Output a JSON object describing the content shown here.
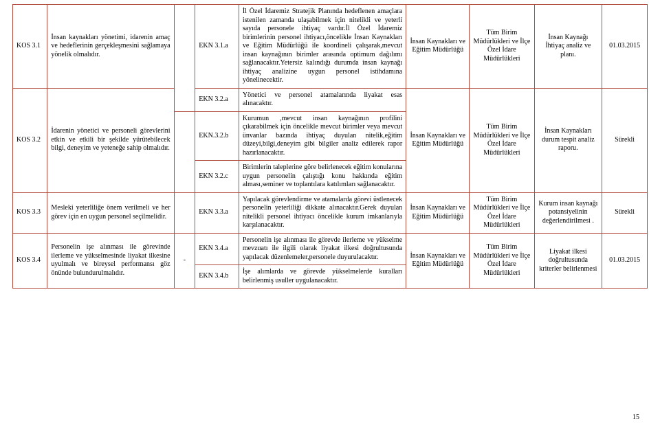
{
  "borderColor": "#b04a3a",
  "pageNumber": "15",
  "rows": [
    {
      "c1": "KOS 3.1",
      "c2": "İnsan kaynakları yönetimi, idarenin amaç ve hedeflerinin gerçekleşmesini sağlamaya yönelik olmalıdır.",
      "c3": "",
      "c4": "EKN 3.1.a",
      "c5": "İl Özel İdaremiz Stratejik Planında hedeflenen amaçlara istenilen zamanda ulaşabilmek için nitelikli ve yeterli sayıda personele ihtiyaç vardır.İl Özel İdaremiz birimlerinin personel ihtiyacı,öncelikle İnsan Kaynakları ve Eğitim Müdürlüğü ile koordineli çalışarak,mevcut insan kaynağının birimler arasında optimum dağılımı sağlanacaktır.Yetersiz kalındığı durumda insan kaynağı ihtiyaç analizine uygun personel istihdamına yönelinecektir.",
      "c6": "İnsan Kaynakları ve Eğitim Müdürlüğü",
      "c7": "Tüm Birim Müdürlükleri ve İlçe Özel İdare Müdürlükleri",
      "c8": "İnsan Kaynağı İhtiyaç analiz ve planı.",
      "c9": "01.03.2015"
    },
    {
      "c4": "EKN 3.2.a",
      "c5": "Yönetici ve personel atamalarında liyakat esas alınacaktır."
    },
    {
      "c1": "KOS 3.2",
      "c2": "İdarenin yönetici ve personeli görevlerini etkin ve etkili bir şekilde yürütebilecek bilgi, deneyim ve yeteneğe sahip olmalıdır.",
      "c3": "",
      "c4a": "EKN.3.2.b",
      "c5a": "Kurumun ,mevcut insan kaynağının profilini çıkarabilmek için öncelikle mevcut birimler veya mevcut ünvanlar bazında ihtiyaç duyulan nitelik,eğitim düzeyi,bilgi,deneyim gibi bilgiler analiz edilerek rapor hazırlanacaktır.",
      "c4b": "EKN 3.2.c",
      "c5b": "Birimlerin taleplerine göre belirlenecek eğitim konularına uygun personelin çalıştığı konu hakkında eğitim alması,seminer ve toplantılara katılımları sağlanacaktır.",
      "c6": "İnsan Kaynakları ve Eğitim Müdürlüğü",
      "c7": "Tüm Birim Müdürlükleri ve İlçe Özel İdare Müdürlükleri",
      "c8": "İnsan Kaynakları durum tespit analiz raporu.",
      "c9": "Sürekli"
    },
    {
      "c1": "KOS 3.3",
      "c2": "Mesleki yeterliliğe önem verilmeli ve her görev için en uygun personel seçilmelidir.",
      "c3": "",
      "c4": "EKN 3.3.a",
      "c5": "Yapılacak görevlendirme ve atamalarda görevi üstlenecek personelin yeterliliği dikkate alınacaktır.Gerek duyulan nitelikli personel ihtiyacı öncelikle kurum imkanlarıyla karşılanacaktır.",
      "c6": "İnsan Kaynakları ve Eğitim Müdürlüğü",
      "c7": "Tüm Birim Müdürlükleri ve İlçe Özel İdare Müdürlükleri",
      "c8": "Kurum insan kaynağı potansiyelinin değerlendirilmesi .",
      "c9": "Sürekli"
    },
    {
      "c1": "KOS 3.4",
      "c2": "Personelin işe alınması ile görevinde ilerleme ve yükselmesinde liyakat ilkesine uyulmalı ve bireysel performansı göz önünde bulundurulmalıdır.",
      "c3": "-",
      "c4a": "EKN 3.4.a",
      "c5a": "Personelin işe alınması ile görevde ilerleme ve yükselme mevzuatı ile ilgili olarak liyakat ilkesi doğrultusunda yapılacak düzenlemeler,personele duyurulacaktır.",
      "c4b": "EKN 3.4.b",
      "c5b": "İşe alımlarda ve görevde yükselmelerde kuralları belirlenmiş usuller uygulanacaktır.",
      "c6": "İnsan Kaynakları ve Eğitim Müdürlüğü",
      "c7": "Tüm Birim Müdürlükleri ve İlçe Özel İdare Müdürlükleri",
      "c8": "Liyakat ilkesi doğrultusunda kriterler belirlenmesi",
      "c9": "01.03.2015"
    }
  ]
}
